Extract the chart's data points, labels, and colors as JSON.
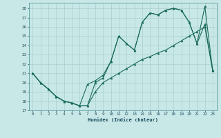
{
  "xlabel": "Humidex (Indice chaleur)",
  "xlim": [
    -0.5,
    23.5
  ],
  "ylim": [
    17,
    28.6
  ],
  "yticks": [
    17,
    18,
    19,
    20,
    21,
    22,
    23,
    24,
    25,
    26,
    27,
    28
  ],
  "xticks": [
    0,
    1,
    2,
    3,
    4,
    5,
    6,
    7,
    8,
    9,
    10,
    11,
    12,
    13,
    14,
    15,
    16,
    17,
    18,
    19,
    20,
    21,
    22,
    23
  ],
  "background_color": "#c8e8e8",
  "grid_color": "#aacece",
  "line_color": "#1a6b5a",
  "line1_x": [
    0,
    1,
    2,
    3,
    4,
    5,
    6,
    7,
    8,
    9,
    10,
    11,
    12,
    13,
    14,
    15,
    16,
    17,
    18,
    19,
    20,
    21,
    22,
    23
  ],
  "line1_y": [
    21.0,
    20.0,
    19.3,
    18.5,
    18.0,
    17.8,
    17.5,
    17.5,
    19.0,
    20.0,
    20.5,
    21.0,
    21.5,
    22.0,
    22.5,
    22.8,
    23.2,
    23.5,
    24.0,
    24.5,
    25.0,
    25.5,
    26.0,
    21.3
  ],
  "line2_x": [
    0,
    1,
    2,
    3,
    4,
    5,
    6,
    7,
    8,
    9,
    10,
    11,
    12,
    13,
    14,
    15,
    16,
    17,
    18,
    19,
    20,
    21,
    22,
    23
  ],
  "line2_y": [
    21.0,
    20.0,
    19.3,
    18.5,
    18.0,
    17.8,
    17.5,
    17.5,
    20.0,
    20.5,
    22.3,
    25.0,
    24.2,
    23.5,
    26.5,
    27.5,
    27.3,
    27.8,
    28.0,
    27.8,
    26.5,
    24.2,
    28.2,
    21.3
  ],
  "line3_x": [
    0,
    1,
    2,
    3,
    4,
    5,
    6,
    7,
    8,
    9,
    10,
    11,
    12,
    13,
    14,
    15,
    16,
    17,
    18,
    19,
    20,
    21,
    22,
    23
  ],
  "line3_y": [
    21.0,
    20.0,
    19.3,
    18.5,
    18.0,
    17.8,
    17.5,
    19.8,
    20.2,
    20.8,
    22.3,
    25.0,
    24.2,
    23.5,
    26.5,
    27.5,
    27.3,
    27.8,
    28.0,
    27.8,
    26.5,
    24.2,
    26.3,
    21.3
  ]
}
